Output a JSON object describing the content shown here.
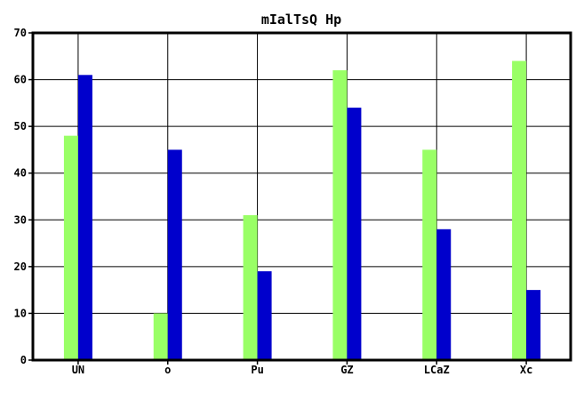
{
  "chart_data": {
    "type": "bar",
    "title": "mIalTsQ Hp",
    "xlabel": "",
    "ylabel": "",
    "categories": [
      "UN",
      "o",
      "Pu",
      "GZ",
      "LCaZ",
      "Xc"
    ],
    "series": [
      {
        "color": "#99ff66",
        "values": [
          48,
          10,
          31,
          62,
          45,
          64
        ]
      },
      {
        "color": "#0000cc",
        "values": [
          61,
          45,
          19,
          54,
          28,
          15
        ]
      }
    ],
    "ylim": [
      0,
      70
    ],
    "yticks": [
      0,
      10,
      20,
      30,
      40,
      50,
      60,
      70
    ],
    "grid": true,
    "legend": "none"
  }
}
